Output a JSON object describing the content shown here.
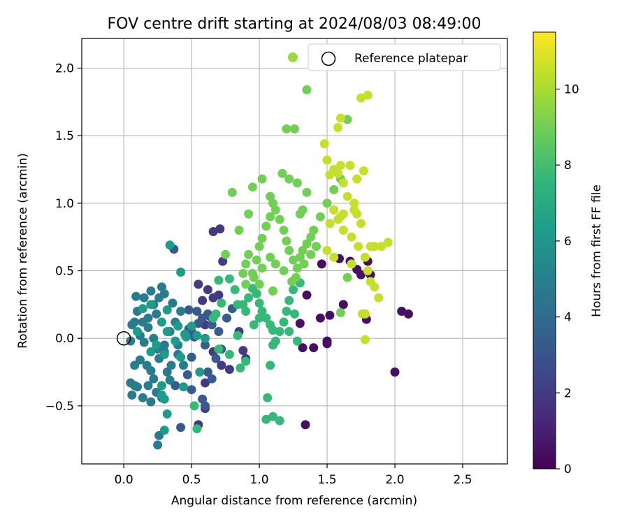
{
  "chart_data": {
    "type": "scatter",
    "title": "FOV centre drift starting at 2024/08/03 08:49:00",
    "xlabel": "Angular distance from reference (arcmin)",
    "ylabel": "Rotation from reference (arcmin)",
    "xlim": [
      -0.31,
      2.83
    ],
    "ylim": [
      -0.93,
      2.22
    ],
    "xticks": [
      0.0,
      0.5,
      1.0,
      1.5,
      2.0,
      2.5
    ],
    "xtick_labels": [
      "0.0",
      "0.5",
      "1.0",
      "1.5",
      "2.0",
      "2.5"
    ],
    "yticks": [
      -0.5,
      0.0,
      0.5,
      1.0,
      1.5,
      2.0
    ],
    "ytick_labels": [
      "−0.5",
      "0.0",
      "0.5",
      "1.0",
      "1.5",
      "2.0"
    ],
    "grid": true,
    "legend": {
      "placement": "top-right",
      "entries": [
        {
          "label": "",
          "marker": "filled-circle",
          "color": "#9bd93c"
        },
        {
          "label": "Reference platepar",
          "marker": "open-circle",
          "color": "#000000"
        }
      ]
    },
    "reference_point": {
      "x": 0.0,
      "y": 0.0
    },
    "colorbar": {
      "label": "Hours from first FF file",
      "range": [
        0,
        11.5
      ],
      "ticks": [
        0,
        2,
        4,
        6,
        8,
        10
      ],
      "tick_labels": [
        "0",
        "2",
        "4",
        "6",
        "8",
        "10"
      ],
      "colormap": [
        "#440154",
        "#482878",
        "#3e4989",
        "#31688e",
        "#26828e",
        "#1f9e89",
        "#35b779",
        "#6ece58",
        "#b5de2b",
        "#fde725"
      ]
    },
    "series": [
      {
        "color_value": 0.5,
        "points": [
          [
            2.0,
            -0.25
          ],
          [
            2.05,
            0.2
          ],
          [
            2.1,
            0.18
          ],
          [
            1.46,
            0.55
          ],
          [
            1.35,
            0.32
          ],
          [
            1.45,
            0.15
          ],
          [
            1.52,
            0.17
          ],
          [
            1.62,
            0.25
          ],
          [
            1.5,
            -0.02
          ],
          [
            1.5,
            -0.04
          ],
          [
            1.4,
            -0.07
          ],
          [
            1.32,
            -0.07
          ],
          [
            1.3,
            0.11
          ],
          [
            1.34,
            -0.64
          ],
          [
            1.79,
            0.14
          ],
          [
            1.8,
            0.57
          ],
          [
            1.75,
            0.47
          ],
          [
            1.72,
            0.51
          ],
          [
            1.82,
            0.47
          ],
          [
            1.59,
            0.59
          ],
          [
            1.67,
            0.57
          ]
        ]
      },
      {
        "color_value": 2.0,
        "points": [
          [
            0.66,
            0.79
          ],
          [
            0.71,
            0.81
          ],
          [
            0.73,
            0.57
          ],
          [
            0.55,
            -0.64
          ],
          [
            0.6,
            -0.52
          ],
          [
            0.6,
            -0.33
          ],
          [
            0.55,
            0.4
          ],
          [
            0.85,
            0.05
          ],
          [
            0.88,
            -0.09
          ],
          [
            0.62,
            0.36
          ],
          [
            0.66,
            0.3
          ],
          [
            0.7,
            0.32
          ],
          [
            0.58,
            0.28
          ],
          [
            0.6,
            0.1
          ],
          [
            0.64,
            0.16
          ],
          [
            0.66,
            -0.1
          ],
          [
            0.72,
            -0.2
          ],
          [
            0.78,
            -0.23
          ],
          [
            0.9,
            -0.15
          ]
        ]
      },
      {
        "color_value": 3.3,
        "points": [
          [
            0.37,
            0.66
          ],
          [
            0.38,
            -0.35
          ],
          [
            0.5,
            -0.38
          ],
          [
            0.42,
            -0.66
          ],
          [
            0.47,
            -0.27
          ],
          [
            0.5,
            -0.14
          ],
          [
            0.52,
            0.01
          ],
          [
            0.48,
            0.07
          ],
          [
            0.55,
            0.11
          ],
          [
            0.62,
            0.18
          ],
          [
            0.65,
            0.1
          ],
          [
            0.7,
            0.05
          ],
          [
            0.72,
            -0.08
          ],
          [
            0.68,
            -0.15
          ],
          [
            0.6,
            -0.05
          ],
          [
            0.5,
            0.05
          ],
          [
            0.48,
            0.21
          ],
          [
            0.54,
            0.2
          ],
          [
            0.58,
            0.15
          ],
          [
            0.62,
            -0.25
          ],
          [
            0.65,
            -0.3
          ],
          [
            0.58,
            -0.45
          ],
          [
            0.6,
            -0.5
          ],
          [
            0.8,
            0.22
          ],
          [
            0.76,
            0.15
          ]
        ]
      },
      {
        "color_value": 4.8,
        "points": [
          [
            0.05,
            -0.33
          ],
          [
            0.06,
            -0.42
          ],
          [
            0.08,
            -0.35
          ],
          [
            0.1,
            -0.36
          ],
          [
            0.14,
            -0.44
          ],
          [
            0.2,
            -0.47
          ],
          [
            0.22,
            -0.3
          ],
          [
            0.18,
            -0.35
          ],
          [
            0.24,
            -0.4
          ],
          [
            0.28,
            -0.44
          ],
          [
            0.26,
            -0.72
          ],
          [
            0.25,
            -0.79
          ],
          [
            0.34,
            -0.31
          ],
          [
            0.35,
            -0.2
          ],
          [
            0.32,
            -0.25
          ],
          [
            0.3,
            -0.1
          ],
          [
            0.25,
            -0.08
          ],
          [
            0.22,
            0.0
          ],
          [
            0.15,
            -0.03
          ],
          [
            0.12,
            0.02
          ],
          [
            0.08,
            0.12
          ],
          [
            0.1,
            0.2
          ],
          [
            0.18,
            0.15
          ],
          [
            0.22,
            0.25
          ],
          [
            0.26,
            0.3
          ],
          [
            0.3,
            0.33
          ],
          [
            0.28,
            0.38
          ],
          [
            0.2,
            0.35
          ],
          [
            0.15,
            0.3
          ],
          [
            0.09,
            0.31
          ],
          [
            0.06,
            0.1
          ],
          [
            0.05,
            -0.02
          ],
          [
            0.08,
            -0.2
          ],
          [
            0.12,
            -0.16
          ],
          [
            0.17,
            -0.2
          ],
          [
            0.2,
            -0.24
          ],
          [
            0.26,
            -0.15
          ],
          [
            0.3,
            -0.05
          ],
          [
            0.34,
            0.05
          ],
          [
            0.38,
            0.12
          ],
          [
            0.42,
            0.2
          ],
          [
            0.36,
            0.26
          ],
          [
            0.4,
            -0.12
          ],
          [
            0.44,
            -0.2
          ],
          [
            0.4,
            -0.05
          ],
          [
            0.18,
            0.08
          ],
          [
            0.14,
            0.12
          ],
          [
            0.24,
            0.18
          ]
        ]
      },
      {
        "color_value": 6.3,
        "points": [
          [
            0.34,
            0.69
          ],
          [
            0.42,
            0.49
          ],
          [
            0.4,
            0.09
          ],
          [
            0.45,
            0.03
          ],
          [
            0.42,
            -0.14
          ],
          [
            0.38,
            -0.02
          ],
          [
            0.32,
            0.05
          ],
          [
            0.28,
            0.12
          ],
          [
            0.32,
            0.21
          ],
          [
            0.3,
            -0.12
          ],
          [
            0.24,
            -0.05
          ],
          [
            0.2,
            -0.1
          ],
          [
            0.28,
            -0.35
          ],
          [
            0.3,
            -0.45
          ],
          [
            0.28,
            -0.42
          ],
          [
            0.3,
            -0.68
          ],
          [
            0.32,
            -0.56
          ],
          [
            0.44,
            -0.36
          ],
          [
            0.46,
            0.01
          ],
          [
            0.5,
            0.09
          ],
          [
            0.56,
            -0.25
          ],
          [
            0.54,
            0.02
          ],
          [
            0.6,
            0.0
          ],
          [
            0.2,
            0.25
          ],
          [
            0.14,
            0.22
          ],
          [
            0.1,
            0.05
          ]
        ]
      },
      {
        "color_value": 7.7,
        "points": [
          [
            0.7,
            0.43
          ],
          [
            0.78,
            0.44
          ],
          [
            0.82,
            0.36
          ],
          [
            0.84,
            0.25
          ],
          [
            0.88,
            0.25
          ],
          [
            0.9,
            0.2
          ],
          [
            0.92,
            0.3
          ],
          [
            0.95,
            0.37
          ],
          [
            0.98,
            0.33
          ],
          [
            1.0,
            0.26
          ],
          [
            1.02,
            0.2
          ],
          [
            1.05,
            0.15
          ],
          [
            1.08,
            0.1
          ],
          [
            1.1,
            0.06
          ],
          [
            1.12,
            -0.02
          ],
          [
            1.15,
            0.05
          ],
          [
            1.18,
            0.12
          ],
          [
            1.2,
            0.2
          ],
          [
            1.22,
            0.28
          ],
          [
            1.25,
            0.36
          ],
          [
            1.05,
            -0.6
          ],
          [
            1.1,
            -0.58
          ],
          [
            1.15,
            -0.61
          ],
          [
            1.06,
            -0.44
          ],
          [
            1.08,
            -0.2
          ],
          [
            1.1,
            -0.05
          ],
          [
            0.86,
            -0.22
          ],
          [
            0.9,
            -0.17
          ],
          [
            0.84,
            0.02
          ],
          [
            0.72,
            0.26
          ],
          [
            0.68,
            0.18
          ],
          [
            0.66,
            0.15
          ],
          [
            0.7,
            -0.08
          ],
          [
            0.78,
            -0.12
          ],
          [
            0.52,
            -0.5
          ],
          [
            0.54,
            -0.67
          ],
          [
            1.3,
            0.41
          ],
          [
            1.26,
            0.18
          ],
          [
            1.22,
            0.05
          ],
          [
            1.28,
            -0.02
          ],
          [
            1.0,
            0.15
          ],
          [
            0.96,
            0.1
          ]
        ]
      },
      {
        "color_value": 9.0,
        "points": [
          [
            0.75,
            0.62
          ],
          [
            0.8,
            1.08
          ],
          [
            0.85,
            0.8
          ],
          [
            0.9,
            0.55
          ],
          [
            0.92,
            0.62
          ],
          [
            0.95,
            0.48
          ],
          [
            0.98,
            0.58
          ],
          [
            1.0,
            0.68
          ],
          [
            1.02,
            0.74
          ],
          [
            1.05,
            0.83
          ],
          [
            1.08,
            0.9
          ],
          [
            1.1,
            1.0
          ],
          [
            1.12,
            0.95
          ],
          [
            1.15,
            0.88
          ],
          [
            1.18,
            0.8
          ],
          [
            1.2,
            0.72
          ],
          [
            1.22,
            0.65
          ],
          [
            1.25,
            0.58
          ],
          [
            1.28,
            0.52
          ],
          [
            1.3,
            0.6
          ],
          [
            1.32,
            0.65
          ],
          [
            1.35,
            0.7
          ],
          [
            1.38,
            0.75
          ],
          [
            1.4,
            0.8
          ],
          [
            1.42,
            0.68
          ],
          [
            1.38,
            0.62
          ],
          [
            1.33,
            0.55
          ],
          [
            1.27,
            0.45
          ],
          [
            1.24,
            0.42
          ],
          [
            1.18,
            0.5
          ],
          [
            1.12,
            0.55
          ],
          [
            1.08,
            0.6
          ],
          [
            1.02,
            0.52
          ],
          [
            0.96,
            0.45
          ],
          [
            0.9,
            0.4
          ],
          [
            0.88,
            0.48
          ],
          [
            1.2,
            1.55
          ],
          [
            1.26,
            1.55
          ],
          [
            1.17,
            1.22
          ],
          [
            1.22,
            1.18
          ],
          [
            1.28,
            1.15
          ],
          [
            1.35,
            1.08
          ],
          [
            1.02,
            1.18
          ],
          [
            0.95,
            1.12
          ],
          [
            1.08,
            1.05
          ],
          [
            1.32,
            0.95
          ],
          [
            1.45,
            0.9
          ],
          [
            1.5,
            1.0
          ],
          [
            1.55,
            1.1
          ],
          [
            1.6,
            1.18
          ],
          [
            1.65,
            1.62
          ],
          [
            1.35,
            1.84
          ],
          [
            0.92,
            0.92
          ],
          [
            1.0,
            0.4
          ],
          [
            1.1,
            0.35
          ],
          [
            1.3,
            0.92
          ],
          [
            1.6,
            0.19
          ],
          [
            1.65,
            0.45
          ]
        ]
      },
      {
        "color_value": 10.5,
        "points": [
          [
            1.48,
            1.44
          ],
          [
            1.5,
            1.32
          ],
          [
            1.55,
            1.25
          ],
          [
            1.58,
            1.22
          ],
          [
            1.62,
            1.15
          ],
          [
            1.65,
            1.05
          ],
          [
            1.7,
            1.0
          ],
          [
            1.72,
            0.92
          ],
          [
            1.75,
            0.85
          ],
          [
            1.6,
            0.9
          ],
          [
            1.58,
            0.88
          ],
          [
            1.55,
            0.95
          ],
          [
            1.52,
            0.85
          ],
          [
            1.62,
            0.8
          ],
          [
            1.68,
            0.75
          ],
          [
            1.73,
            0.68
          ],
          [
            1.78,
            0.6
          ],
          [
            1.8,
            0.5
          ],
          [
            1.82,
            0.42
          ],
          [
            1.85,
            0.38
          ],
          [
            1.88,
            0.3
          ],
          [
            1.78,
            0.18
          ],
          [
            1.82,
            0.68
          ],
          [
            1.85,
            0.68
          ],
          [
            1.9,
            0.68
          ],
          [
            1.95,
            0.71
          ],
          [
            1.8,
            1.8
          ],
          [
            1.75,
            1.78
          ],
          [
            1.6,
            1.63
          ],
          [
            1.58,
            1.56
          ],
          [
            1.52,
            1.21
          ],
          [
            1.67,
            1.28
          ],
          [
            1.77,
            1.24
          ],
          [
            1.72,
            1.18
          ],
          [
            1.55,
            0.6
          ],
          [
            1.5,
            0.65
          ],
          [
            1.62,
            0.92
          ],
          [
            1.7,
            0.95
          ],
          [
            1.76,
            0.18
          ],
          [
            1.78,
            -0.01
          ],
          [
            1.68,
            0.55
          ],
          [
            1.6,
            1.28
          ]
        ]
      }
    ]
  }
}
